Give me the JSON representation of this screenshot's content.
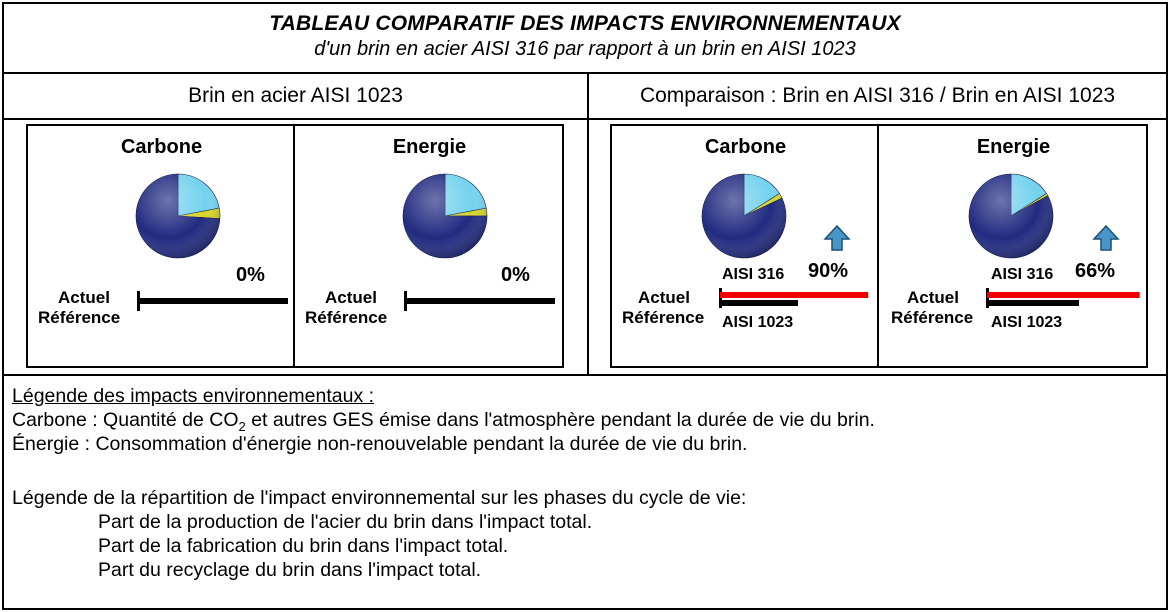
{
  "header": {
    "title": "TABLEAU COMPARATIF DES IMPACTS ENVIRONNEMENTAUX",
    "subtitle": "d'un brin en acier AISI 316 par rapport à un brin en AISI 1023"
  },
  "columns": {
    "left": "Brin en acier AISI 1023",
    "right": "Comparaison : Brin en AISI 316 / Brin en AISI 1023"
  },
  "colors": {
    "production": "#202a80",
    "fabrication": "#d8d62a",
    "recyclage": "#74d2ee",
    "actuel_bar": "#ee0000",
    "reference_bar": "#000000",
    "arrow": "#4a95c8"
  },
  "panels": {
    "left": [
      {
        "title": "Carbone",
        "actuel_label": "Actuel",
        "reference_label": "Référence",
        "change": "0%",
        "pie": {
          "production": 0.74,
          "fabrication": 0.04,
          "recyclage": 0.22
        },
        "actuel_bar": 1.0,
        "reference_bar": 1.0
      },
      {
        "title": "Energie",
        "actuel_label": "Actuel",
        "reference_label": "Référence",
        "change": "0%",
        "pie": {
          "production": 0.75,
          "fabrication": 0.03,
          "recyclage": 0.22
        },
        "actuel_bar": 1.0,
        "reference_bar": 1.0
      }
    ],
    "right": [
      {
        "title": "Carbone",
        "actuel_label": "Actuel",
        "reference_label": "Référence",
        "change": "90%",
        "arrow_icon": "arrow-up-icon",
        "material_actuel": "AISI 316",
        "material_reference": "AISI 1023",
        "pie": {
          "production": 0.82,
          "fabrication": 0.02,
          "recyclage": 0.16
        },
        "actuel_bar": 1.9,
        "reference_bar": 1.0
      },
      {
        "title": "Energie",
        "actuel_label": "Actuel",
        "reference_label": "Référence",
        "change": "66%",
        "arrow_icon": "arrow-up-icon",
        "material_actuel": "AISI 316",
        "material_reference": "AISI 1023",
        "pie": {
          "production": 0.83,
          "fabrication": 0.01,
          "recyclage": 0.16
        },
        "actuel_bar": 1.66,
        "reference_bar": 1.0
      }
    ]
  },
  "legend": {
    "impacts_title": "Légende des impacts environnementaux :",
    "carbone_prefix": "Carbone : Quantité de CO",
    "carbone_sub": "2",
    "carbone_suffix": " et autres GES émise dans l'atmosphère pendant la durée de vie du brin.",
    "energie": "Énergie : Consommation d'énergie non-renouvelable pendant la durée de vie du brin.",
    "phases_title": "Légende de la répartition de l'impact environnemental sur les phases du cycle de vie:",
    "production": "Part de la production de l'acier du brin dans l'impact total.",
    "fabrication": "Part de la fabrication du brin dans l'impact total.",
    "recyclage": "Part du recyclage du brin dans l'impact total."
  }
}
